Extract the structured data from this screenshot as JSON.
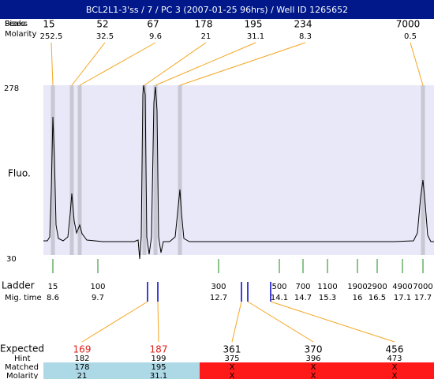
{
  "title": "BCL2L1-3'ss / 7 / PC 3 (2007-01-25 96hrs) / Well ID 1265652",
  "row_labels": {
    "peaks": "Peaks",
    "sizes": "Sizes",
    "molarity": "Molarity"
  },
  "peaks": [
    {
      "size": 15,
      "molarity": 252.5
    },
    {
      "size": 52,
      "molarity": 32.5
    },
    {
      "size": 67,
      "molarity": 9.6
    },
    {
      "size": 178,
      "molarity": 21
    },
    {
      "size": 195,
      "molarity": 31.1
    },
    {
      "size": 234,
      "molarity": 8.3
    },
    {
      "size": 7000,
      "molarity": 0.5
    }
  ],
  "y_axis": {
    "top": "278",
    "bottom": "30",
    "label": "Fluo."
  },
  "ladder": {
    "label": "Ladder",
    "time_label": "Mig. time",
    "items": [
      {
        "size": 15,
        "time": 8.6
      },
      {
        "size": 100,
        "time": 9.7
      },
      {
        "size": 300,
        "time": 12.7
      },
      {
        "size": 500,
        "time": 14.1
      },
      {
        "size": 700,
        "time": 14.7
      },
      {
        "size": 1100,
        "time": 15.3
      },
      {
        "size": 1900,
        "time": 16
      },
      {
        "size": 2900,
        "time": 16.5
      },
      {
        "size": 4900,
        "time": 17.1
      },
      {
        "size": 7000,
        "time": 17.7
      }
    ]
  },
  "expected": {
    "labels": {
      "expected": "Expected",
      "hint": "Hint",
      "matched": "Matched",
      "molarity": "Molarity"
    },
    "items": [
      {
        "expected": 169,
        "hint": 182,
        "matched": 178,
        "molarity": 21
      },
      {
        "expected": 187,
        "hint": 199,
        "matched": 195,
        "molarity": 31.1
      },
      {
        "expected": 361,
        "hint": 375,
        "matched": "X",
        "molarity": "X"
      },
      {
        "expected": 370,
        "hint": 396,
        "matched": "X",
        "molarity": "X"
      },
      {
        "expected": 456,
        "hint": 473,
        "matched": "X",
        "molarity": "X"
      }
    ]
  }
}
